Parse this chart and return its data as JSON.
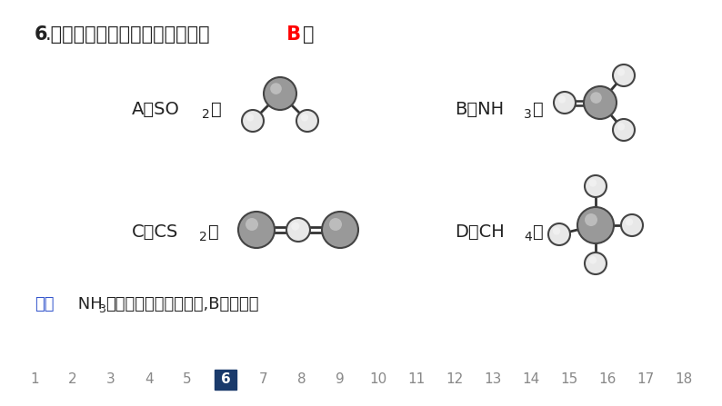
{
  "bg_color": "#ffffff",
  "title_part1": "6",
  "title_part2": ".下列分子的空间结构错误的是（",
  "title_answer": " B ",
  "title_end": "）",
  "answer_color": "#ff0000",
  "label_A": "A．SO",
  "label_A2": "2",
  "label_A3": "：",
  "label_B": "B．NH",
  "label_B2": "3",
  "label_B3": "：",
  "label_C": "C．CS",
  "label_C2": "2",
  "label_C3": "：",
  "label_D": "D．CH",
  "label_D2": "4",
  "label_D3": "：",
  "analysis_blue": "解析",
  "analysis_black": " NH",
  "analysis_black2": "3",
  "analysis_black3": "的空间结构是三角锥形,B项错误。",
  "nav_numbers": [
    "1",
    "2",
    "3",
    "4",
    "5",
    "6",
    "7",
    "8",
    "9",
    "10",
    "11",
    "12",
    "13",
    "14",
    "15",
    "16",
    "17",
    "18"
  ],
  "nav_highlight": "6",
  "nav_box_color": "#1a3a6b",
  "dark_gray": "#999999",
  "light_gray": "#e8e8e8",
  "outline_color": "#444444"
}
